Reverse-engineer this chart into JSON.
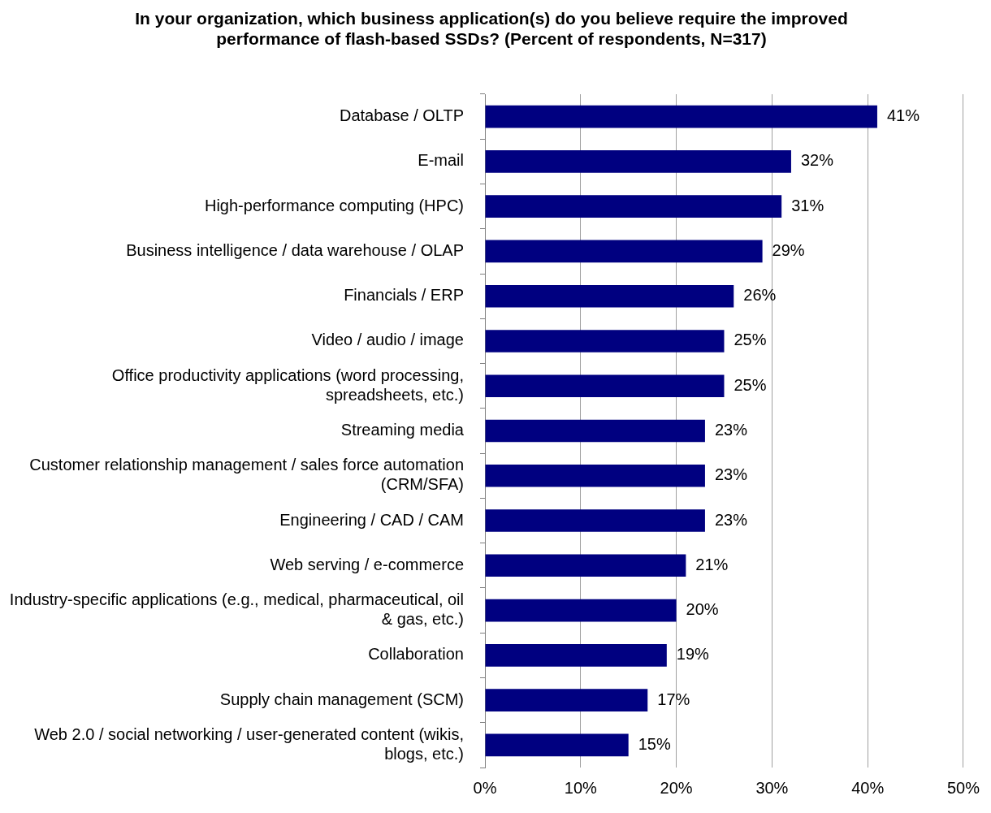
{
  "chart_data": {
    "type": "bar",
    "orientation": "horizontal",
    "title": "In your organization, which business application(s) do you believe require the improved performance of flash-based SSDs? (Percent of respondents, N=317)",
    "categories": [
      "Database / OLTP",
      "E-mail",
      "High-performance computing (HPC)",
      "Business intelligence / data warehouse / OLAP",
      "Financials / ERP",
      "Video / audio / image",
      "Office productivity applications (word processing, spreadsheets, etc.)",
      "Streaming media",
      "Customer relationship management / sales force automation (CRM/SFA)",
      "Engineering / CAD / CAM",
      "Web serving / e-commerce",
      "Industry-specific applications (e.g., medical, pharmaceutical, oil & gas, etc.)",
      "Collaboration",
      "Supply chain management (SCM)",
      "Web 2.0 / social networking / user-generated content (wikis, blogs, etc.)"
    ],
    "values": [
      41,
      32,
      31,
      29,
      26,
      25,
      25,
      23,
      23,
      23,
      21,
      20,
      19,
      17,
      15
    ],
    "value_labels": [
      "41%",
      "32%",
      "31%",
      "29%",
      "26%",
      "25%",
      "25%",
      "23%",
      "23%",
      "23%",
      "21%",
      "20%",
      "19%",
      "17%",
      "15%"
    ],
    "color": "#000080",
    "xlim": [
      0,
      50
    ],
    "xticks": [
      {
        "value": 0,
        "label": "0%"
      },
      {
        "value": 10,
        "label": "10%"
      },
      {
        "value": 20,
        "label": "20%"
      },
      {
        "value": 30,
        "label": "30%"
      },
      {
        "value": 40,
        "label": "40%"
      },
      {
        "value": 50,
        "label": "50%"
      }
    ],
    "grid": "x",
    "legend": false
  }
}
